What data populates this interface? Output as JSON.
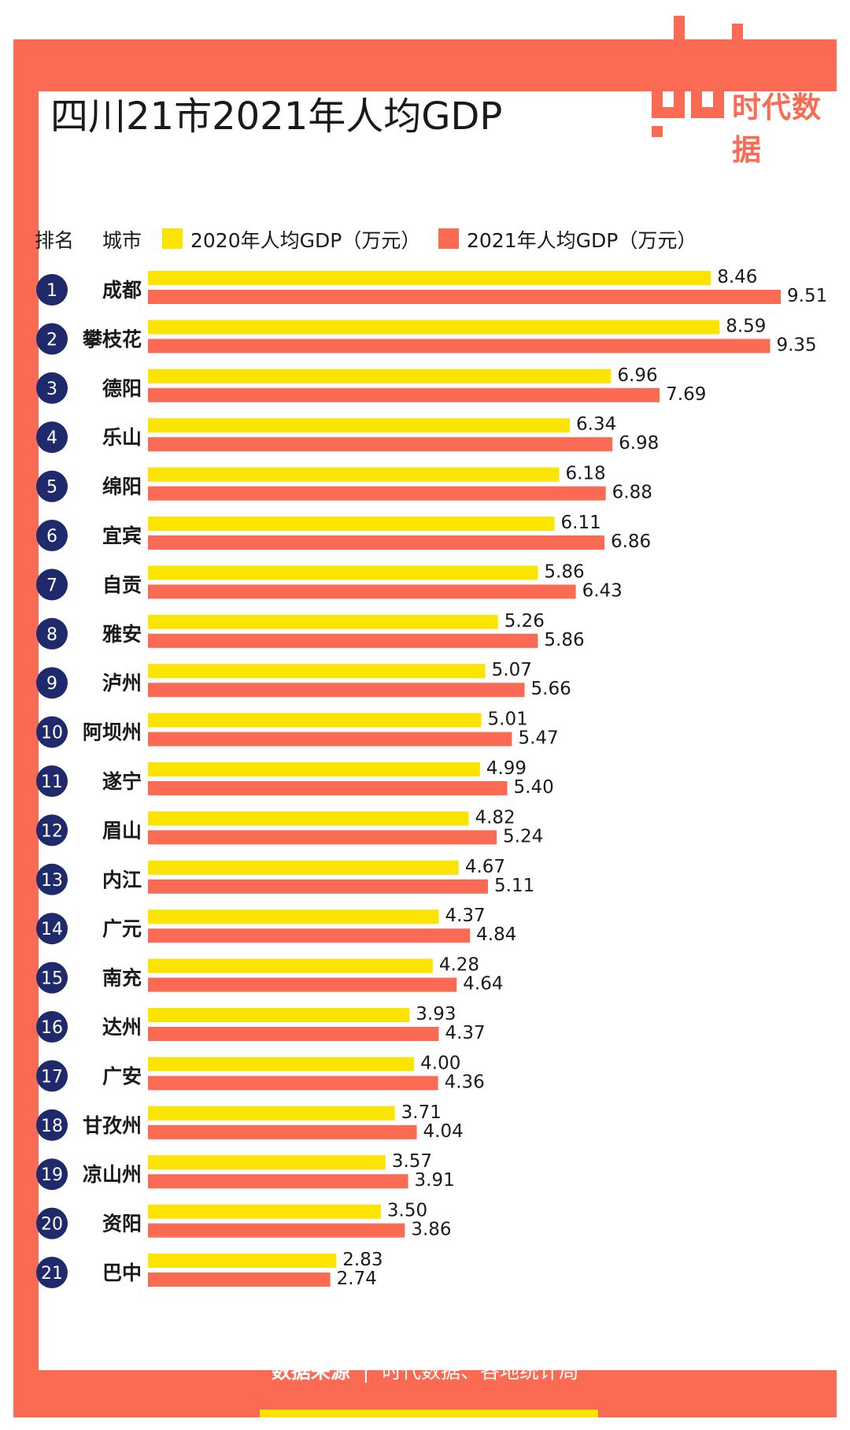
{
  "title": "四川21市2021年人均GDP",
  "logo": {
    "wordmark": "data",
    "brand": "时代数据"
  },
  "header": {
    "rank_label": "排名",
    "city_label": "城市",
    "legend": [
      {
        "label": "2020年人均GDP（万元）",
        "color": "#fbe400"
      },
      {
        "label": "2021年人均GDP（万元）",
        "color": "#fb6a53"
      }
    ]
  },
  "chart_data": {
    "type": "bar",
    "orientation": "horizontal",
    "title": "四川21市2021年人均GDP",
    "categories": [
      "成都",
      "攀枝花",
      "德阳",
      "乐山",
      "绵阳",
      "宜宾",
      "自贡",
      "雅安",
      "泸州",
      "阿坝州",
      "遂宁",
      "眉山",
      "内江",
      "广元",
      "南充",
      "达州",
      "广安",
      "甘孜州",
      "凉山州",
      "资阳",
      "巴中"
    ],
    "ranks": [
      "1",
      "2",
      "3",
      "4",
      "5",
      "6",
      "7",
      "8",
      "9",
      "10",
      "11",
      "12",
      "13",
      "14",
      "15",
      "16",
      "17",
      "18",
      "19",
      "20",
      "21"
    ],
    "series": [
      {
        "name": "2020年人均GDP（万元）",
        "color": "#fbe400",
        "values": [
          8.46,
          8.59,
          6.96,
          6.34,
          6.18,
          6.11,
          5.86,
          5.26,
          5.07,
          5.01,
          4.99,
          4.82,
          4.67,
          4.37,
          4.28,
          3.93,
          4.0,
          3.71,
          3.57,
          3.5,
          2.83
        ]
      },
      {
        "name": "2021年人均GDP（万元）",
        "color": "#fb6a53",
        "values": [
          9.51,
          9.35,
          7.69,
          6.98,
          6.88,
          6.86,
          6.43,
          5.86,
          5.66,
          5.47,
          5.4,
          5.24,
          5.11,
          4.84,
          4.64,
          4.37,
          4.36,
          4.04,
          3.91,
          3.86,
          2.74
        ]
      }
    ],
    "xlim": [
      0,
      9.51
    ],
    "grid": false,
    "legend": "top"
  },
  "colors": {
    "accent": "#fb6a53",
    "yellow": "#fbe400",
    "rank_circle": "#1f2a6d"
  },
  "source": {
    "label": "数据来源",
    "separator": "|",
    "text": "时代数据、各地统计局"
  }
}
